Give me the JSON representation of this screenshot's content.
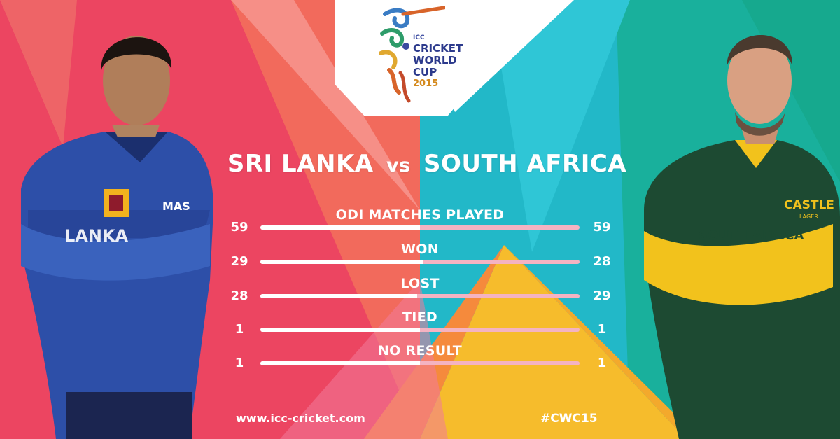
{
  "event_logo": {
    "icc": "ICC",
    "line1": "CRICKET",
    "line2": "WORLD",
    "line3": "CUP",
    "year": "2015"
  },
  "match": {
    "team_a": "SRI LANKA",
    "vs": "vs",
    "team_b": "SOUTH AFRICA"
  },
  "stats": [
    {
      "label": "ODI MATCHES PLAYED",
      "left": "59",
      "right": "59",
      "left_share": 0.5
    },
    {
      "label": "WON",
      "left": "29",
      "right": "28",
      "left_share": 0.509
    },
    {
      "label": "LOST",
      "left": "28",
      "right": "29",
      "left_share": 0.491
    },
    {
      "label": "TIED",
      "left": "1",
      "right": "1",
      "left_share": 0.5
    },
    {
      "label": "NO RESULT",
      "left": "1",
      "right": "1",
      "left_share": 0.5
    }
  ],
  "footer": {
    "url": "www.icc-cricket.com",
    "hashtag": "#CWC15"
  },
  "players": {
    "left": {
      "jersey_text": "LANKA",
      "sponsor": "MAS",
      "icon": "sri-lanka-player-photo"
    },
    "right": {
      "jersey_text": "SOUTH AFRICA",
      "sponsor": "CASTLE",
      "sponsor_sub": "LAGER",
      "icon": "south-africa-player-photo"
    }
  },
  "colors": {
    "coral": "#ee4f62",
    "pink": "#f05a7a",
    "cyan": "#2fc2d2",
    "teal": "#18b59a",
    "yellow": "#f6bc2c",
    "orange": "#f58a3c",
    "sl_blue": "#2d4fa8",
    "sa_green": "#1d4a32",
    "sa_yellow": "#f2c21c",
    "bar_track": "#f4b3c2"
  }
}
